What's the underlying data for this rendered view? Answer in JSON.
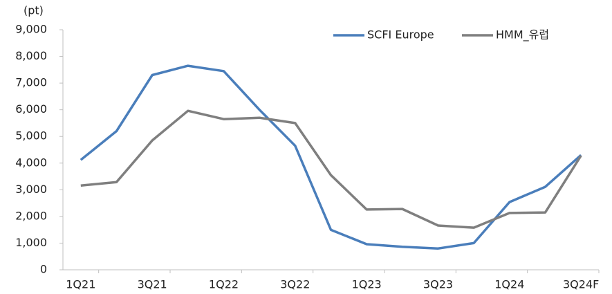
{
  "chart_data": {
    "type": "line",
    "y_label": "(pt)",
    "categories": [
      "1Q21",
      null,
      "3Q21",
      null,
      "1Q22",
      null,
      "3Q22",
      null,
      "1Q23",
      null,
      "3Q23",
      null,
      "1Q24",
      null,
      "3Q24F"
    ],
    "series": [
      {
        "name": "SCFI Europe",
        "color": "#4a7ebb",
        "values": [
          4120,
          5200,
          7300,
          7650,
          7450,
          6000,
          4650,
          1500,
          960,
          860,
          800,
          1000,
          2540,
          3110,
          4300
        ]
      },
      {
        "name": "HMM_유럽",
        "color": "#7f7f7f",
        "values": [
          3160,
          3290,
          4850,
          5960,
          5650,
          5700,
          5500,
          3550,
          2260,
          2280,
          1660,
          1580,
          2130,
          2150,
          4280
        ]
      }
    ],
    "ylim": [
      0,
      9000
    ],
    "yticks": [
      0,
      {
        "value": 1000,
        "label": "1,000"
      },
      {
        "value": 2000,
        "label": "2,000"
      },
      {
        "value": 3000,
        "label": "3,000"
      },
      {
        "value": 4000,
        "label": "4,000"
      },
      {
        "value": 5000,
        "label": "5,000"
      },
      {
        "value": 6000,
        "label": "6,000"
      },
      {
        "value": 7000,
        "label": "7,000"
      },
      {
        "value": 8000,
        "label": "8,000"
      },
      {
        "value": 9000,
        "label": "9,000"
      }
    ],
    "grid": false,
    "legend": "top-right"
  }
}
